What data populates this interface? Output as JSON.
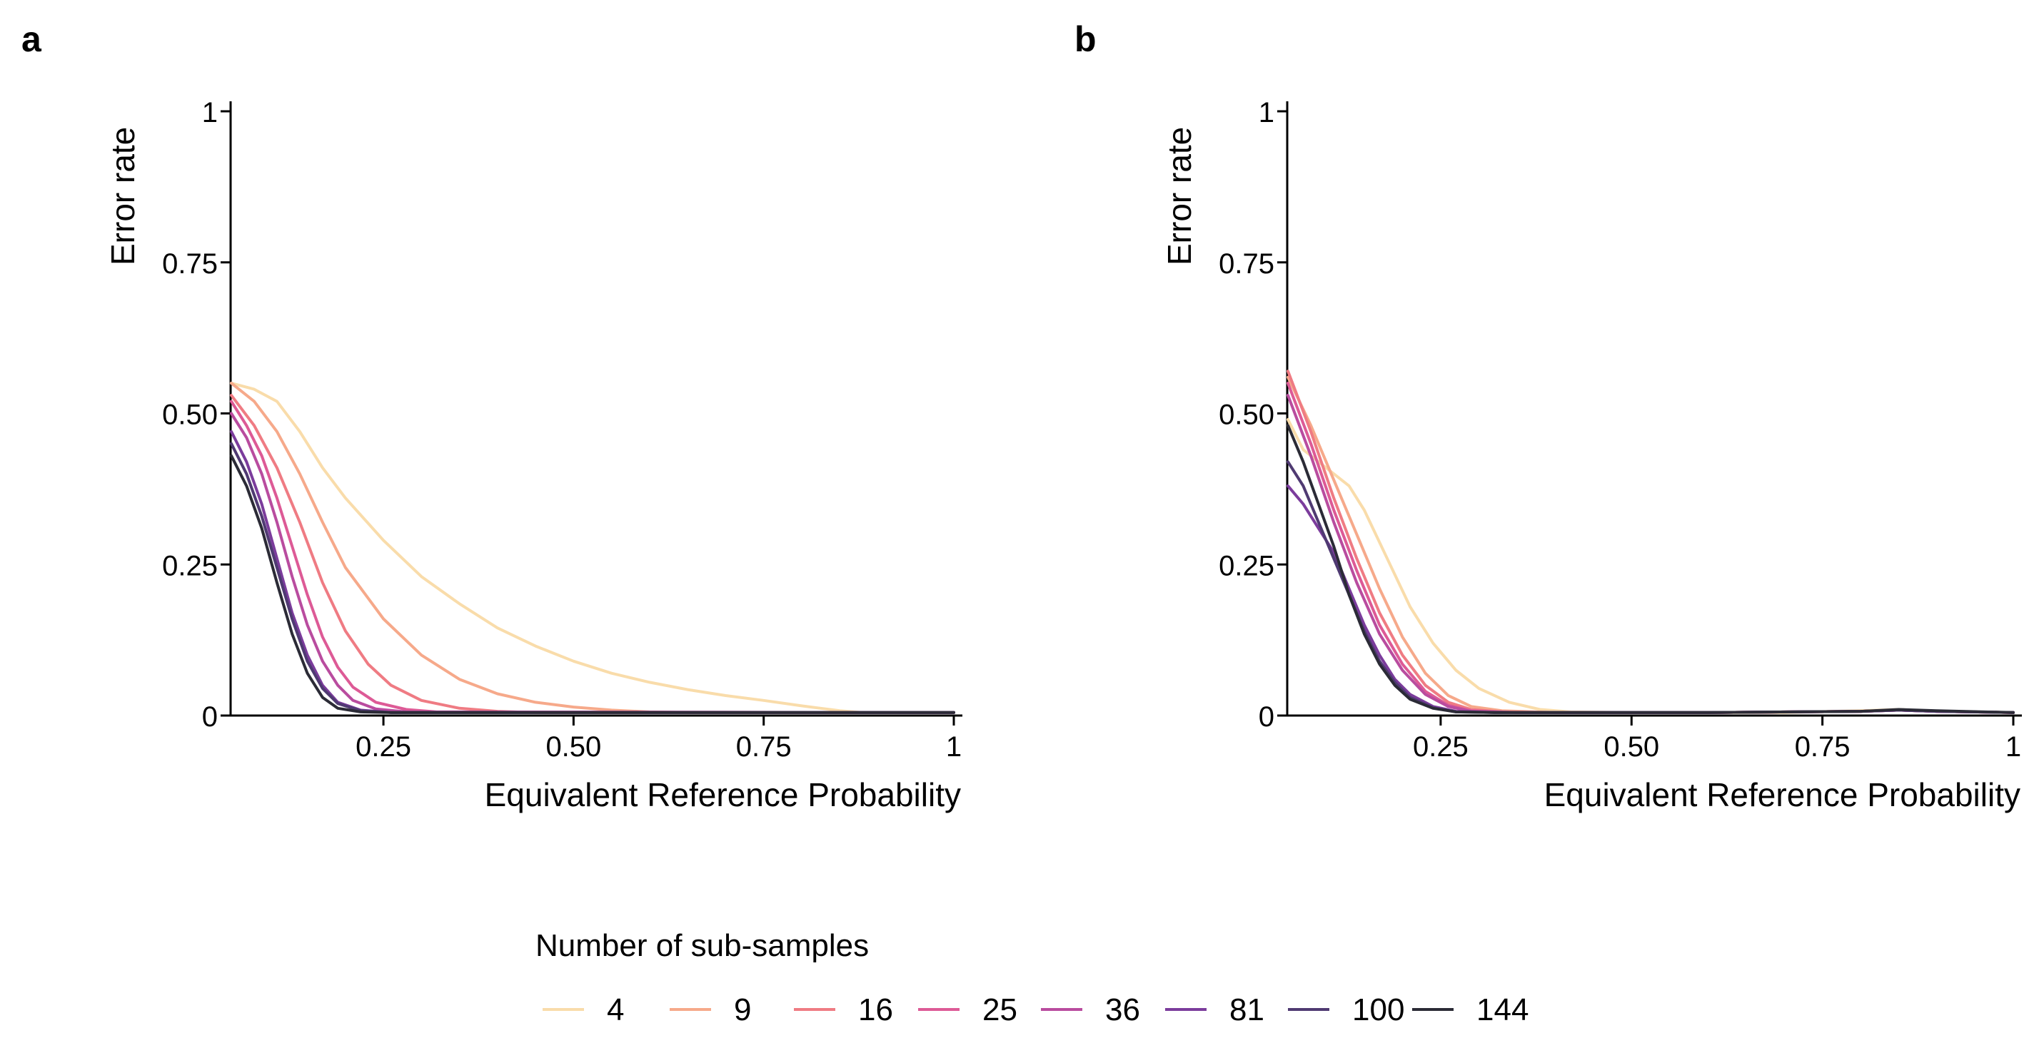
{
  "panels": {
    "a": {
      "label": "a"
    },
    "b": {
      "label": "b"
    }
  },
  "legend": {
    "title": "Number of sub-samples"
  },
  "chart_data": [
    {
      "type": "line",
      "panel": "a",
      "xlabel": "Equivalent Reference Probability",
      "ylabel": "Error rate",
      "xlim": [
        0.05,
        1
      ],
      "ylim": [
        0,
        1
      ],
      "x_ticks": [
        0.25,
        0.5,
        0.75,
        1
      ],
      "x_tick_labels": [
        "0.25",
        "0.50",
        "0.75",
        "1"
      ],
      "y_ticks": [
        0,
        0.25,
        0.5,
        0.75,
        1
      ],
      "y_tick_labels": [
        "0",
        "0.25",
        "0.50",
        "0.75",
        "1"
      ],
      "legend_position": "bottom",
      "series": [
        {
          "name": "4",
          "color": "#f9dcaa",
          "points": [
            [
              0.05,
              0.55
            ],
            [
              0.08,
              0.54
            ],
            [
              0.11,
              0.52
            ],
            [
              0.14,
              0.47
            ],
            [
              0.17,
              0.41
            ],
            [
              0.2,
              0.36
            ],
            [
              0.25,
              0.29
            ],
            [
              0.3,
              0.23
            ],
            [
              0.35,
              0.185
            ],
            [
              0.4,
              0.145
            ],
            [
              0.45,
              0.115
            ],
            [
              0.5,
              0.09
            ],
            [
              0.55,
              0.07
            ],
            [
              0.6,
              0.055
            ],
            [
              0.65,
              0.043
            ],
            [
              0.7,
              0.033
            ],
            [
              0.75,
              0.025
            ],
            [
              0.8,
              0.016
            ],
            [
              0.85,
              0.008
            ],
            [
              0.88,
              0.005
            ],
            [
              1.0,
              0.005
            ]
          ]
        },
        {
          "name": "9",
          "color": "#f6a98a",
          "points": [
            [
              0.05,
              0.55
            ],
            [
              0.08,
              0.52
            ],
            [
              0.11,
              0.47
            ],
            [
              0.14,
              0.4
            ],
            [
              0.17,
              0.32
            ],
            [
              0.2,
              0.245
            ],
            [
              0.25,
              0.16
            ],
            [
              0.3,
              0.1
            ],
            [
              0.35,
              0.06
            ],
            [
              0.4,
              0.036
            ],
            [
              0.45,
              0.022
            ],
            [
              0.5,
              0.014
            ],
            [
              0.55,
              0.009
            ],
            [
              0.6,
              0.006
            ],
            [
              0.65,
              0.005
            ],
            [
              1.0,
              0.005
            ]
          ]
        },
        {
          "name": "16",
          "color": "#ef7b83",
          "points": [
            [
              0.05,
              0.53
            ],
            [
              0.08,
              0.48
            ],
            [
              0.11,
              0.41
            ],
            [
              0.14,
              0.32
            ],
            [
              0.17,
              0.22
            ],
            [
              0.2,
              0.14
            ],
            [
              0.23,
              0.085
            ],
            [
              0.26,
              0.05
            ],
            [
              0.3,
              0.025
            ],
            [
              0.35,
              0.012
            ],
            [
              0.4,
              0.007
            ],
            [
              0.45,
              0.005
            ],
            [
              1.0,
              0.005
            ]
          ]
        },
        {
          "name": "25",
          "color": "#dd5a96",
          "points": [
            [
              0.05,
              0.52
            ],
            [
              0.07,
              0.48
            ],
            [
              0.09,
              0.43
            ],
            [
              0.11,
              0.36
            ],
            [
              0.13,
              0.28
            ],
            [
              0.15,
              0.2
            ],
            [
              0.17,
              0.13
            ],
            [
              0.19,
              0.08
            ],
            [
              0.21,
              0.047
            ],
            [
              0.24,
              0.022
            ],
            [
              0.28,
              0.01
            ],
            [
              0.32,
              0.006
            ],
            [
              1.0,
              0.005
            ]
          ]
        },
        {
          "name": "36",
          "color": "#b94c9f",
          "points": [
            [
              0.05,
              0.5
            ],
            [
              0.07,
              0.46
            ],
            [
              0.09,
              0.4
            ],
            [
              0.11,
              0.32
            ],
            [
              0.13,
              0.23
            ],
            [
              0.15,
              0.15
            ],
            [
              0.17,
              0.09
            ],
            [
              0.19,
              0.05
            ],
            [
              0.21,
              0.025
            ],
            [
              0.24,
              0.011
            ],
            [
              0.28,
              0.006
            ],
            [
              1.0,
              0.005
            ]
          ]
        },
        {
          "name": "81",
          "color": "#7b3c9c",
          "points": [
            [
              0.05,
              0.47
            ],
            [
              0.07,
              0.42
            ],
            [
              0.09,
              0.35
            ],
            [
              0.11,
              0.26
            ],
            [
              0.13,
              0.17
            ],
            [
              0.15,
              0.1
            ],
            [
              0.17,
              0.05
            ],
            [
              0.19,
              0.022
            ],
            [
              0.22,
              0.009
            ],
            [
              0.26,
              0.005
            ],
            [
              1.0,
              0.005
            ]
          ]
        },
        {
          "name": "100",
          "color": "#4f3a72",
          "points": [
            [
              0.05,
              0.45
            ],
            [
              0.07,
              0.4
            ],
            [
              0.09,
              0.33
            ],
            [
              0.11,
              0.245
            ],
            [
              0.13,
              0.16
            ],
            [
              0.15,
              0.09
            ],
            [
              0.17,
              0.045
            ],
            [
              0.19,
              0.02
            ],
            [
              0.22,
              0.008
            ],
            [
              0.26,
              0.005
            ],
            [
              1.0,
              0.005
            ]
          ]
        },
        {
          "name": "144",
          "color": "#2b2b36",
          "points": [
            [
              0.05,
              0.43
            ],
            [
              0.07,
              0.38
            ],
            [
              0.09,
              0.31
            ],
            [
              0.11,
              0.22
            ],
            [
              0.13,
              0.135
            ],
            [
              0.15,
              0.07
            ],
            [
              0.17,
              0.03
            ],
            [
              0.19,
              0.012
            ],
            [
              0.22,
              0.006
            ],
            [
              0.26,
              0.005
            ],
            [
              1.0,
              0.005
            ]
          ]
        }
      ]
    },
    {
      "type": "line",
      "panel": "b",
      "xlabel": "Equivalent Reference Probability",
      "ylabel": "Error rate",
      "xlim": [
        0.05,
        1
      ],
      "ylim": [
        0,
        1
      ],
      "x_ticks": [
        0.25,
        0.5,
        0.75,
        1
      ],
      "x_tick_labels": [
        "0.25",
        "0.50",
        "0.75",
        "1"
      ],
      "y_ticks": [
        0,
        0.25,
        0.5,
        0.75,
        1
      ],
      "y_tick_labels": [
        "0",
        "0.25",
        "0.50",
        "0.75",
        "1"
      ],
      "legend_position": "bottom",
      "series": [
        {
          "name": "4",
          "color": "#f9dcaa",
          "points": [
            [
              0.05,
              0.49
            ],
            [
              0.07,
              0.44
            ],
            [
              0.1,
              0.41
            ],
            [
              0.13,
              0.38
            ],
            [
              0.15,
              0.34
            ],
            [
              0.18,
              0.26
            ],
            [
              0.21,
              0.18
            ],
            [
              0.24,
              0.12
            ],
            [
              0.27,
              0.075
            ],
            [
              0.3,
              0.045
            ],
            [
              0.34,
              0.022
            ],
            [
              0.38,
              0.01
            ],
            [
              0.42,
              0.006
            ],
            [
              0.5,
              0.005
            ],
            [
              0.6,
              0.005
            ],
            [
              0.7,
              0.005
            ],
            [
              0.8,
              0.008
            ],
            [
              0.85,
              0.01
            ],
            [
              0.9,
              0.007
            ],
            [
              1.0,
              0.005
            ]
          ]
        },
        {
          "name": "9",
          "color": "#f6a98a",
          "points": [
            [
              0.05,
              0.56
            ],
            [
              0.08,
              0.48
            ],
            [
              0.11,
              0.39
            ],
            [
              0.14,
              0.3
            ],
            [
              0.17,
              0.21
            ],
            [
              0.2,
              0.13
            ],
            [
              0.23,
              0.07
            ],
            [
              0.26,
              0.033
            ],
            [
              0.29,
              0.015
            ],
            [
              0.33,
              0.008
            ],
            [
              0.4,
              0.005
            ],
            [
              0.6,
              0.005
            ],
            [
              0.8,
              0.007
            ],
            [
              0.85,
              0.009
            ],
            [
              0.9,
              0.007
            ],
            [
              1.0,
              0.005
            ]
          ]
        },
        {
          "name": "16",
          "color": "#ef7b83",
          "points": [
            [
              0.05,
              0.57
            ],
            [
              0.08,
              0.47
            ],
            [
              0.11,
              0.36
            ],
            [
              0.14,
              0.26
            ],
            [
              0.17,
              0.17
            ],
            [
              0.2,
              0.1
            ],
            [
              0.23,
              0.05
            ],
            [
              0.26,
              0.022
            ],
            [
              0.29,
              0.01
            ],
            [
              0.33,
              0.006
            ],
            [
              0.4,
              0.005
            ],
            [
              0.6,
              0.005
            ],
            [
              0.8,
              0.007
            ],
            [
              0.85,
              0.009
            ],
            [
              0.9,
              0.007
            ],
            [
              1.0,
              0.005
            ]
          ]
        },
        {
          "name": "25",
          "color": "#dd5a96",
          "points": [
            [
              0.05,
              0.55
            ],
            [
              0.08,
              0.45
            ],
            [
              0.11,
              0.34
            ],
            [
              0.14,
              0.24
            ],
            [
              0.17,
              0.15
            ],
            [
              0.2,
              0.085
            ],
            [
              0.23,
              0.04
            ],
            [
              0.26,
              0.017
            ],
            [
              0.29,
              0.008
            ],
            [
              0.35,
              0.005
            ],
            [
              0.6,
              0.005
            ],
            [
              0.8,
              0.007
            ],
            [
              0.85,
              0.009
            ],
            [
              0.9,
              0.007
            ],
            [
              1.0,
              0.005
            ]
          ]
        },
        {
          "name": "36",
          "color": "#b94c9f",
          "points": [
            [
              0.05,
              0.53
            ],
            [
              0.08,
              0.43
            ],
            [
              0.11,
              0.32
            ],
            [
              0.14,
              0.22
            ],
            [
              0.17,
              0.135
            ],
            [
              0.2,
              0.075
            ],
            [
              0.23,
              0.035
            ],
            [
              0.26,
              0.015
            ],
            [
              0.29,
              0.007
            ],
            [
              0.35,
              0.005
            ],
            [
              0.6,
              0.005
            ],
            [
              0.8,
              0.007
            ],
            [
              0.85,
              0.009
            ],
            [
              0.9,
              0.007
            ],
            [
              1.0,
              0.005
            ]
          ]
        },
        {
          "name": "81",
          "color": "#7b3c9c",
          "points": [
            [
              0.05,
              0.38
            ],
            [
              0.07,
              0.35
            ],
            [
              0.09,
              0.31
            ],
            [
              0.11,
              0.27
            ],
            [
              0.13,
              0.21
            ],
            [
              0.15,
              0.15
            ],
            [
              0.17,
              0.1
            ],
            [
              0.19,
              0.06
            ],
            [
              0.21,
              0.035
            ],
            [
              0.24,
              0.015
            ],
            [
              0.27,
              0.007
            ],
            [
              0.32,
              0.005
            ],
            [
              0.6,
              0.005
            ],
            [
              0.8,
              0.007
            ],
            [
              0.85,
              0.009
            ],
            [
              0.9,
              0.007
            ],
            [
              1.0,
              0.005
            ]
          ]
        },
        {
          "name": "100",
          "color": "#4f3a72",
          "points": [
            [
              0.05,
              0.42
            ],
            [
              0.07,
              0.38
            ],
            [
              0.09,
              0.32
            ],
            [
              0.11,
              0.26
            ],
            [
              0.13,
              0.2
            ],
            [
              0.15,
              0.14
            ],
            [
              0.17,
              0.09
            ],
            [
              0.19,
              0.055
            ],
            [
              0.21,
              0.03
            ],
            [
              0.24,
              0.013
            ],
            [
              0.27,
              0.006
            ],
            [
              0.32,
              0.005
            ],
            [
              0.6,
              0.005
            ],
            [
              0.8,
              0.007
            ],
            [
              0.85,
              0.009
            ],
            [
              0.9,
              0.007
            ],
            [
              1.0,
              0.005
            ]
          ]
        },
        {
          "name": "144",
          "color": "#2b2b36",
          "points": [
            [
              0.05,
              0.48
            ],
            [
              0.07,
              0.42
            ],
            [
              0.09,
              0.35
            ],
            [
              0.11,
              0.28
            ],
            [
              0.13,
              0.2
            ],
            [
              0.15,
              0.135
            ],
            [
              0.17,
              0.085
            ],
            [
              0.19,
              0.05
            ],
            [
              0.21,
              0.027
            ],
            [
              0.24,
              0.012
            ],
            [
              0.27,
              0.006
            ],
            [
              0.32,
              0.005
            ],
            [
              0.6,
              0.005
            ],
            [
              0.8,
              0.007
            ],
            [
              0.85,
              0.01
            ],
            [
              0.9,
              0.008
            ],
            [
              1.0,
              0.005
            ]
          ]
        }
      ]
    }
  ]
}
